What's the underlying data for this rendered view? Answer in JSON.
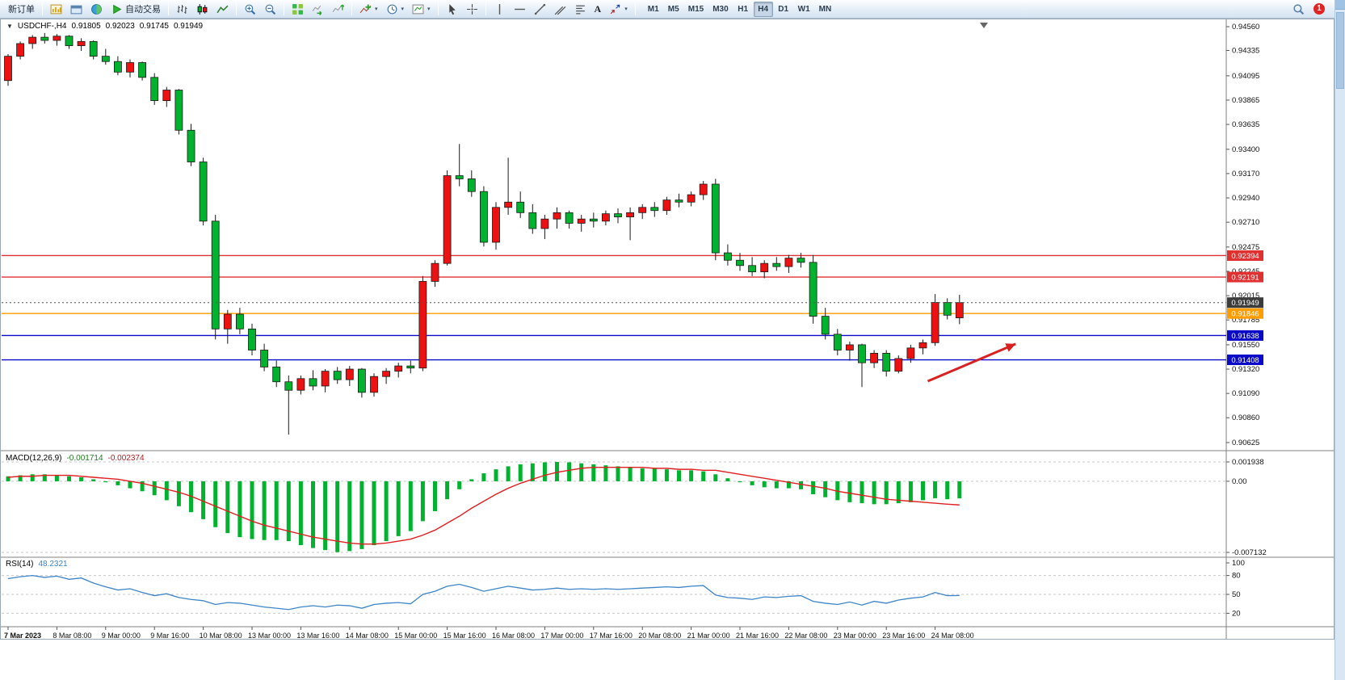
{
  "toolbar": {
    "new_order": "新订单",
    "autotrading": "自动交易",
    "text_tool_label": "A",
    "timeframes": [
      "M1",
      "M5",
      "M15",
      "M30",
      "H1",
      "H4",
      "D1",
      "W1",
      "MN"
    ],
    "active_timeframe": "H4",
    "notification_badge": "1"
  },
  "chart_header": {
    "symbol": "USDCHF-,H4",
    "open": "0.91805",
    "high": "0.92023",
    "low": "0.91745",
    "close": "0.91949"
  },
  "indicator_labels": {
    "macd_name": "MACD(12,26,9)",
    "macd_value": "-0.001714",
    "macd_signal_value": "-0.002374",
    "rsi_name": "RSI(14)",
    "rsi_value": "48.2321"
  },
  "price_axis": [
    "0.94560",
    "0.94335",
    "0.94095",
    "0.93865",
    "0.93635",
    "0.93400",
    "0.93170",
    "0.92940",
    "0.92710",
    "0.92475",
    "0.92245",
    "0.92015",
    "0.91785",
    "0.91550",
    "0.91320",
    "0.91090",
    "0.90860",
    "0.90625"
  ],
  "macd_axis": [
    {
      "label": "0.001938",
      "value": 0.001938
    },
    {
      "label": "0.00",
      "value": 0
    },
    {
      "label": "-0.007132",
      "value": -0.007132
    }
  ],
  "rsi_axis": [
    {
      "label": "100",
      "value": 100
    },
    {
      "label": "80",
      "value": 80
    },
    {
      "label": "50",
      "value": 50
    },
    {
      "label": "20",
      "value": 20
    }
  ],
  "time_axis": [
    "7 Mar 2023",
    "8 Mar 08:00",
    "9 Mar 00:00",
    "9 Mar 16:00",
    "10 Mar 08:00",
    "13 Mar 00:00",
    "13 Mar 16:00",
    "14 Mar 08:00",
    "15 Mar 00:00",
    "15 Mar 16:00",
    "16 Mar 08:00",
    "17 Mar 00:00",
    "17 Mar 16:00",
    "20 Mar 08:00",
    "21 Mar 00:00",
    "21 Mar 16:00",
    "22 Mar 08:00",
    "23 Mar 00:00",
    "23 Mar 16:00",
    "24 Mar 08:00"
  ],
  "hlines": [
    {
      "price": 0.92394,
      "label": "0.92394",
      "color": "#e03030"
    },
    {
      "price": 0.92191,
      "label": "0.92191",
      "color": "#e03030"
    },
    {
      "price": 0.91846,
      "label": "0.91846",
      "color": "#ff9c00"
    },
    {
      "price": 0.91638,
      "label": "0.91638",
      "color": "#0a0ac8"
    },
    {
      "price": 0.91408,
      "label": "0.91408",
      "color": "#0a0ac8"
    }
  ],
  "current_price": {
    "price": 0.91949,
    "label": "0.91949",
    "color": "#3c3c3c"
  },
  "annotations": [
    {
      "type": "arrow",
      "color": "#d92121",
      "from_candle": 75.4,
      "from_price": 0.91206,
      "to_candle": 82.6,
      "to_price": 0.91558
    }
  ],
  "chart_data": {
    "type": "candlestick",
    "symbol": "USDCHF",
    "timeframe": "H4",
    "title": "USDCHF-,H4 0.91805 0.92023 0.91745 0.91949",
    "up_color": "#ee1111",
    "down_color": "#00b22d",
    "price_range": [
      0.90625,
      0.9456
    ],
    "candles": [
      [
        0.9405,
        0.943,
        0.94,
        0.9428
      ],
      [
        0.9428,
        0.9442,
        0.9425,
        0.944
      ],
      [
        0.944,
        0.9448,
        0.9435,
        0.9446
      ],
      [
        0.9446,
        0.945,
        0.944,
        0.9443
      ],
      [
        0.9443,
        0.9449,
        0.9438,
        0.9447
      ],
      [
        0.9447,
        0.9448,
        0.9435,
        0.9438
      ],
      [
        0.9438,
        0.9445,
        0.9433,
        0.9442
      ],
      [
        0.9442,
        0.9443,
        0.9425,
        0.9428
      ],
      [
        0.9428,
        0.9435,
        0.942,
        0.9423
      ],
      [
        0.9423,
        0.9428,
        0.941,
        0.9413
      ],
      [
        0.9413,
        0.9425,
        0.9408,
        0.9422
      ],
      [
        0.9422,
        0.9423,
        0.9405,
        0.9408
      ],
      [
        0.9408,
        0.9412,
        0.9382,
        0.9386
      ],
      [
        0.9386,
        0.9399,
        0.938,
        0.9396
      ],
      [
        0.9396,
        0.9397,
        0.9354,
        0.9358
      ],
      [
        0.9358,
        0.9364,
        0.9324,
        0.9328
      ],
      [
        0.9328,
        0.9332,
        0.9268,
        0.9272
      ],
      [
        0.9272,
        0.9278,
        0.916,
        0.917
      ],
      [
        0.917,
        0.9188,
        0.9156,
        0.9184
      ],
      [
        0.9184,
        0.919,
        0.9165,
        0.917
      ],
      [
        0.917,
        0.9175,
        0.9145,
        0.915
      ],
      [
        0.915,
        0.9156,
        0.913,
        0.9134
      ],
      [
        0.9134,
        0.914,
        0.9115,
        0.912
      ],
      [
        0.912,
        0.9126,
        0.907,
        0.9112
      ],
      [
        0.9112,
        0.9126,
        0.9108,
        0.9123
      ],
      [
        0.9123,
        0.9131,
        0.9112,
        0.9116
      ],
      [
        0.9116,
        0.9132,
        0.911,
        0.913
      ],
      [
        0.913,
        0.9134,
        0.9118,
        0.9122
      ],
      [
        0.9122,
        0.9135,
        0.9116,
        0.9132
      ],
      [
        0.9132,
        0.9133,
        0.9105,
        0.911
      ],
      [
        0.911,
        0.9128,
        0.9106,
        0.9125
      ],
      [
        0.9125,
        0.9133,
        0.9118,
        0.913
      ],
      [
        0.913,
        0.9138,
        0.9124,
        0.9135
      ],
      [
        0.9135,
        0.914,
        0.9128,
        0.9133
      ],
      [
        0.9133,
        0.922,
        0.913,
        0.9215
      ],
      [
        0.9215,
        0.9235,
        0.921,
        0.9232
      ],
      [
        0.9232,
        0.932,
        0.923,
        0.9315
      ],
      [
        0.9315,
        0.9345,
        0.9305,
        0.9312
      ],
      [
        0.9312,
        0.932,
        0.9295,
        0.93
      ],
      [
        0.93,
        0.9305,
        0.9248,
        0.9252
      ],
      [
        0.9252,
        0.929,
        0.9245,
        0.9285
      ],
      [
        0.9285,
        0.9332,
        0.9278,
        0.929
      ],
      [
        0.929,
        0.93,
        0.9275,
        0.928
      ],
      [
        0.928,
        0.9288,
        0.926,
        0.9265
      ],
      [
        0.9265,
        0.9278,
        0.9255,
        0.9274
      ],
      [
        0.9274,
        0.9285,
        0.9265,
        0.928
      ],
      [
        0.928,
        0.9282,
        0.9265,
        0.927
      ],
      [
        0.927,
        0.9278,
        0.9262,
        0.9274
      ],
      [
        0.9274,
        0.928,
        0.9266,
        0.9272
      ],
      [
        0.9272,
        0.9282,
        0.9268,
        0.9279
      ],
      [
        0.9279,
        0.9284,
        0.927,
        0.9276
      ],
      [
        0.9276,
        0.9285,
        0.9254,
        0.928
      ],
      [
        0.928,
        0.9288,
        0.9274,
        0.9285
      ],
      [
        0.9285,
        0.929,
        0.9276,
        0.9282
      ],
      [
        0.9282,
        0.9295,
        0.9278,
        0.9292
      ],
      [
        0.9292,
        0.9298,
        0.9285,
        0.929
      ],
      [
        0.929,
        0.93,
        0.9286,
        0.9297
      ],
      [
        0.9297,
        0.931,
        0.9292,
        0.9307
      ],
      [
        0.9307,
        0.9312,
        0.9235,
        0.9242
      ],
      [
        0.9242,
        0.925,
        0.923,
        0.9235
      ],
      [
        0.9235,
        0.9242,
        0.9225,
        0.923
      ],
      [
        0.923,
        0.9238,
        0.922,
        0.9224
      ],
      [
        0.9224,
        0.9235,
        0.9218,
        0.9232
      ],
      [
        0.9232,
        0.9238,
        0.9225,
        0.9229
      ],
      [
        0.9229,
        0.924,
        0.9223,
        0.9237
      ],
      [
        0.9237,
        0.9242,
        0.9228,
        0.9233
      ],
      [
        0.9233,
        0.924,
        0.9175,
        0.9182
      ],
      [
        0.9182,
        0.919,
        0.916,
        0.9165
      ],
      [
        0.9165,
        0.917,
        0.9145,
        0.915
      ],
      [
        0.915,
        0.9158,
        0.914,
        0.9155
      ],
      [
        0.9155,
        0.9156,
        0.9115,
        0.9138
      ],
      [
        0.9138,
        0.915,
        0.9133,
        0.9147
      ],
      [
        0.9147,
        0.915,
        0.9125,
        0.913
      ],
      [
        0.913,
        0.9145,
        0.9128,
        0.9142
      ],
      [
        0.9142,
        0.9155,
        0.9138,
        0.9152
      ],
      [
        0.9152,
        0.916,
        0.9146,
        0.9157
      ],
      [
        0.9157,
        0.9203,
        0.9154,
        0.9195
      ],
      [
        0.9195,
        0.9199,
        0.9179,
        0.9183
      ],
      [
        0.91805,
        0.92023,
        0.91745,
        0.91949
      ]
    ],
    "macd": {
      "range": [
        -0.007132,
        0.001938
      ],
      "signal_color": "#e02020",
      "histogram": [
        0.0005,
        0.0006,
        0.0007,
        0.0007,
        0.0006,
        0.0005,
        0.0004,
        0.0002,
        -0.0001,
        -0.0004,
        -0.0007,
        -0.001,
        -0.0014,
        -0.0019,
        -0.0025,
        -0.0031,
        -0.0038,
        -0.0046,
        -0.0052,
        -0.0056,
        -0.0058,
        -0.0059,
        -0.0059,
        -0.006,
        -0.0064,
        -0.0067,
        -0.0069,
        -0.0071,
        -0.007,
        -0.0068,
        -0.0064,
        -0.006,
        -0.0055,
        -0.005,
        -0.004,
        -0.003,
        -0.0018,
        -0.0008,
        0.0002,
        0.0008,
        0.0012,
        0.0015,
        0.0017,
        0.0018,
        0.0019,
        0.00194,
        0.0019,
        0.0018,
        0.0017,
        0.0016,
        0.0015,
        0.0014,
        0.0013,
        0.0013,
        0.0012,
        0.0011,
        0.0011,
        0.001,
        0.0007,
        0.0003,
        -0.0001,
        -0.0004,
        -0.0006,
        -0.0007,
        -0.0007,
        -0.0008,
        -0.0013,
        -0.0016,
        -0.0019,
        -0.0021,
        -0.0022,
        -0.0023,
        -0.0023,
        -0.0022,
        -0.0021,
        -0.0019,
        -0.0017,
        -0.0018,
        -0.001714
      ],
      "signal": [
        0.0004,
        0.0005,
        0.0005,
        0.0006,
        0.0006,
        0.0006,
        0.0005,
        0.0004,
        0.0003,
        0.0002,
        0.0,
        -0.0002,
        -0.0005,
        -0.0008,
        -0.0011,
        -0.0015,
        -0.002,
        -0.0025,
        -0.003,
        -0.0035,
        -0.004,
        -0.0044,
        -0.0047,
        -0.005,
        -0.0053,
        -0.0056,
        -0.0058,
        -0.006,
        -0.0062,
        -0.0063,
        -0.0063,
        -0.0062,
        -0.006,
        -0.0058,
        -0.0054,
        -0.0049,
        -0.0042,
        -0.0035,
        -0.0027,
        -0.002,
        -0.0013,
        -0.0007,
        -0.0002,
        0.0002,
        0.0006,
        0.0009,
        0.0011,
        0.0013,
        0.0014,
        0.0014,
        0.0014,
        0.0014,
        0.0014,
        0.0013,
        0.0013,
        0.0012,
        0.0012,
        0.0011,
        0.0011,
        0.0009,
        0.0007,
        0.0005,
        0.0003,
        0.0001,
        -0.0001,
        -0.0003,
        -0.0005,
        -0.0007,
        -0.001,
        -0.0012,
        -0.0014,
        -0.0016,
        -0.0018,
        -0.0019,
        -0.002,
        -0.0021,
        -0.0022,
        -0.0023,
        -0.002374
      ]
    },
    "rsi": {
      "color": "#3d85c8",
      "levels": [
        80,
        50,
        20
      ],
      "values": [
        75,
        78,
        80,
        77,
        79,
        74,
        76,
        68,
        62,
        57,
        59,
        53,
        48,
        51,
        45,
        42,
        40,
        34,
        37,
        36,
        33,
        30,
        28,
        26,
        30,
        32,
        30,
        33,
        32,
        28,
        34,
        36,
        37,
        35,
        50,
        55,
        63,
        66,
        61,
        55,
        59,
        63,
        60,
        57,
        58,
        60,
        58,
        59,
        58,
        59,
        58,
        59,
        60,
        61,
        62,
        61,
        63,
        64,
        49,
        45,
        44,
        42,
        46,
        45,
        47,
        48,
        39,
        36,
        34,
        38,
        33,
        39,
        36,
        41,
        44,
        46,
        53,
        48,
        48.2321
      ]
    }
  }
}
